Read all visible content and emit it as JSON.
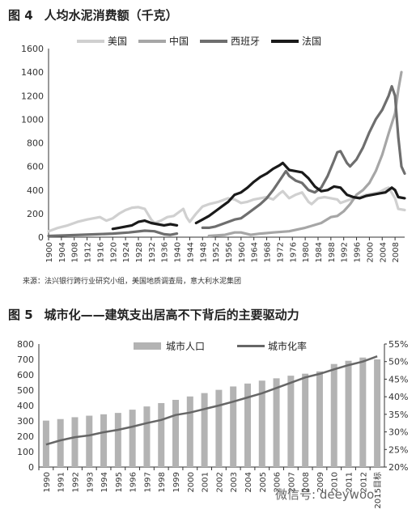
{
  "chart1": {
    "fig_num": "图 4",
    "title": "人均水泥消费额（千克）",
    "source": "来源：法兴银行跨行业研究小组，美国地质调查局，意大利水泥集团",
    "chart_data": {
      "type": "line",
      "title": "人均水泥消费额（千克）",
      "ylim": [
        0,
        1600
      ],
      "yticks": [
        0,
        200,
        400,
        600,
        800,
        1000,
        1200,
        1400,
        1600
      ],
      "xlim": [
        1900,
        2011
      ],
      "xticks": [
        1900,
        1904,
        1908,
        1912,
        1916,
        1920,
        1924,
        1928,
        1932,
        1936,
        1940,
        1944,
        1948,
        1952,
        1956,
        1960,
        1964,
        1968,
        1972,
        1976,
        1980,
        1984,
        1988,
        1992,
        1996,
        2000,
        2004,
        2008
      ],
      "legend_position": "top",
      "series": [
        {
          "name": "美国",
          "color": "#d0d0d0",
          "segments": [
            [
              [
                1900,
                50
              ],
              [
                1903,
                80
              ],
              [
                1906,
                100
              ],
              [
                1909,
                130
              ],
              [
                1912,
                150
              ],
              [
                1914,
                160
              ],
              [
                1916,
                170
              ],
              [
                1918,
                140
              ],
              [
                1920,
                160
              ],
              [
                1922,
                200
              ],
              [
                1924,
                230
              ],
              [
                1926,
                250
              ],
              [
                1928,
                255
              ],
              [
                1930,
                240
              ],
              [
                1932,
                150
              ],
              [
                1933,
                120
              ],
              [
                1935,
                140
              ],
              [
                1937,
                170
              ],
              [
                1939,
                180
              ],
              [
                1941,
                220
              ],
              [
                1942,
                240
              ],
              [
                1943,
                170
              ],
              [
                1944,
                130
              ],
              [
                1946,
                200
              ],
              [
                1948,
                260
              ],
              [
                1950,
                280
              ],
              [
                1953,
                300
              ],
              [
                1956,
                330
              ],
              [
                1958,
                320
              ],
              [
                1960,
                290
              ],
              [
                1962,
                300
              ],
              [
                1964,
                320
              ],
              [
                1966,
                330
              ],
              [
                1968,
                340
              ],
              [
                1970,
                320
              ],
              [
                1972,
                370
              ],
              [
                1973,
                390
              ],
              [
                1975,
                330
              ],
              [
                1977,
                360
              ],
              [
                1979,
                380
              ],
              [
                1981,
                300
              ],
              [
                1982,
                280
              ],
              [
                1984,
                330
              ],
              [
                1986,
                340
              ],
              [
                1988,
                330
              ],
              [
                1990,
                320
              ],
              [
                1991,
                290
              ],
              [
                1993,
                310
              ],
              [
                1995,
                330
              ],
              [
                1997,
                340
              ],
              [
                1999,
                360
              ],
              [
                2001,
                370
              ],
              [
                2003,
                380
              ],
              [
                2005,
                410
              ],
              [
                2006,
                420
              ],
              [
                2008,
                330
              ],
              [
                2009,
                240
              ],
              [
                2011,
                230
              ]
            ]
          ]
        },
        {
          "name": "中国",
          "color": "#a6a6a6",
          "segments": [
            [
              [
                1950,
                10
              ],
              [
                1955,
                20
              ],
              [
                1958,
                40
              ],
              [
                1960,
                40
              ],
              [
                1963,
                20
              ],
              [
                1966,
                30
              ],
              [
                1970,
                40
              ],
              [
                1975,
                50
              ],
              [
                1980,
                80
              ],
              [
                1985,
                120
              ],
              [
                1988,
                170
              ],
              [
                1990,
                180
              ],
              [
                1992,
                220
              ],
              [
                1994,
                280
              ],
              [
                1996,
                360
              ],
              [
                1998,
                400
              ],
              [
                2000,
                460
              ],
              [
                2002,
                560
              ],
              [
                2004,
                700
              ],
              [
                2006,
                880
              ],
              [
                2008,
                1050
              ],
              [
                2009,
                1250
              ],
              [
                2010,
                1400
              ]
            ]
          ]
        },
        {
          "name": "西班牙",
          "color": "#6e6e6e",
          "segments": [
            [
              [
                1900,
                10
              ],
              [
                1905,
                15
              ],
              [
                1910,
                20
              ],
              [
                1915,
                25
              ],
              [
                1920,
                30
              ],
              [
                1925,
                40
              ],
              [
                1930,
                55
              ],
              [
                1933,
                50
              ],
              [
                1936,
                25
              ],
              [
                1938,
                20
              ],
              [
                1940,
                30
              ]
            ],
            [
              [
                1948,
                80
              ],
              [
                1950,
                80
              ],
              [
                1952,
                90
              ],
              [
                1954,
                110
              ],
              [
                1956,
                130
              ],
              [
                1958,
                150
              ],
              [
                1960,
                160
              ],
              [
                1962,
                200
              ],
              [
                1964,
                240
              ],
              [
                1966,
                280
              ],
              [
                1968,
                330
              ],
              [
                1970,
                400
              ],
              [
                1972,
                480
              ],
              [
                1974,
                560
              ],
              [
                1975,
                520
              ],
              [
                1977,
                480
              ],
              [
                1979,
                460
              ],
              [
                1981,
                400
              ],
              [
                1983,
                380
              ],
              [
                1985,
                420
              ],
              [
                1987,
                520
              ],
              [
                1989,
                650
              ],
              [
                1990,
                720
              ],
              [
                1991,
                730
              ],
              [
                1993,
                630
              ],
              [
                1994,
                600
              ],
              [
                1996,
                660
              ],
              [
                1998,
                760
              ],
              [
                2000,
                890
              ],
              [
                2002,
                1000
              ],
              [
                2004,
                1080
              ],
              [
                2006,
                1200
              ],
              [
                2007,
                1280
              ],
              [
                2008,
                1200
              ],
              [
                2009,
                850
              ],
              [
                2010,
                600
              ],
              [
                2011,
                540
              ]
            ]
          ]
        },
        {
          "name": "法国",
          "color": "#1a1a1a",
          "segments": [
            [
              [
                1920,
                70
              ],
              [
                1922,
                80
              ],
              [
                1924,
                90
              ],
              [
                1926,
                100
              ],
              [
                1928,
                130
              ],
              [
                1930,
                140
              ],
              [
                1932,
                120
              ],
              [
                1934,
                110
              ],
              [
                1936,
                100
              ],
              [
                1938,
                110
              ],
              [
                1940,
                100
              ]
            ],
            [
              [
                1946,
                120
              ],
              [
                1948,
                150
              ],
              [
                1950,
                180
              ],
              [
                1952,
                220
              ],
              [
                1954,
                260
              ],
              [
                1956,
                300
              ],
              [
                1958,
                360
              ],
              [
                1960,
                380
              ],
              [
                1962,
                420
              ],
              [
                1964,
                470
              ],
              [
                1966,
                510
              ],
              [
                1968,
                540
              ],
              [
                1970,
                580
              ],
              [
                1972,
                610
              ],
              [
                1973,
                630
              ],
              [
                1975,
                570
              ],
              [
                1977,
                560
              ],
              [
                1979,
                550
              ],
              [
                1981,
                500
              ],
              [
                1983,
                430
              ],
              [
                1985,
                390
              ],
              [
                1987,
                400
              ],
              [
                1989,
                430
              ],
              [
                1991,
                420
              ],
              [
                1993,
                360
              ],
              [
                1995,
                340
              ],
              [
                1997,
                330
              ],
              [
                1999,
                350
              ],
              [
                2001,
                360
              ],
              [
                2003,
                370
              ],
              [
                2005,
                380
              ],
              [
                2007,
                420
              ],
              [
                2008,
                400
              ],
              [
                2009,
                340
              ],
              [
                2011,
                330
              ]
            ]
          ]
        }
      ]
    }
  },
  "chart2": {
    "fig_num": "图 5",
    "title": "城市化——建筑支出居高不下背后的主要驱动力",
    "chart_data": {
      "type": "bar",
      "title": "城市化——建筑支出居高不下背后的主要驱动力",
      "categories": [
        "1990",
        "1991",
        "1992",
        "1993",
        "1994",
        "1995",
        "1996",
        "1997",
        "1998",
        "1999",
        "2000",
        "2001",
        "2002",
        "2003",
        "2004",
        "2005",
        "2006",
        "2007",
        "2008",
        "2009",
        "2010",
        "2011",
        "2012",
        "2015目标"
      ],
      "ylim_left": [
        0,
        800
      ],
      "yticks_left": [
        0,
        100,
        200,
        300,
        400,
        500,
        600,
        700,
        800
      ],
      "ylim_right": [
        20,
        55
      ],
      "yticks_right": [
        "20%",
        "25%",
        "30%",
        "35%",
        "40%",
        "45%",
        "50%",
        "55%"
      ],
      "legend_position": "top",
      "series": [
        {
          "name": "城市人口",
          "type": "bar",
          "color": "#b3b3b3",
          "values": [
            302,
            312,
            324,
            334,
            343,
            352,
            373,
            394,
            416,
            437,
            459,
            481,
            502,
            524,
            543,
            562,
            577,
            594,
            607,
            622,
            670,
            691,
            712,
            700
          ]
        },
        {
          "name": "城市化率",
          "type": "line",
          "color": "#666666",
          "values": [
            26.4,
            27.6,
            28.5,
            29.0,
            29.9,
            30.6,
            31.5,
            32.5,
            33.4,
            34.8,
            35.5,
            36.5,
            37.5,
            38.6,
            39.8,
            41.0,
            42.5,
            44.0,
            45.5,
            46.5,
            47.8,
            49.0,
            50.0,
            51.5
          ]
        }
      ]
    }
  },
  "watermark": "微信号: deeywoo"
}
